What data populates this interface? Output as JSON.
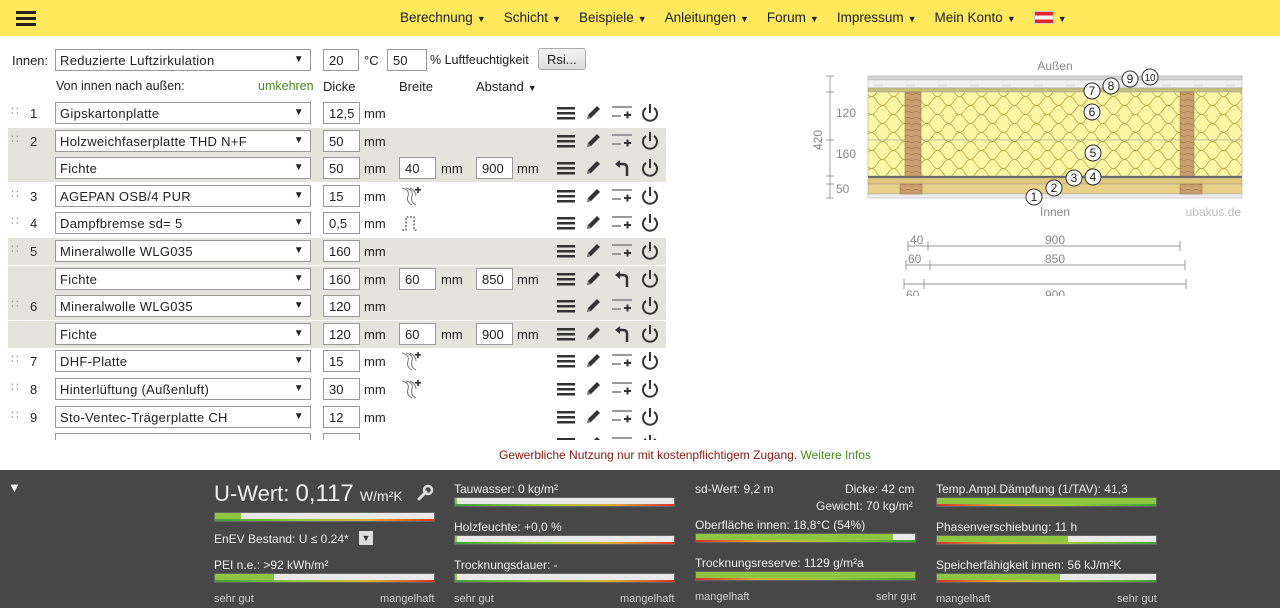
{
  "nav": {
    "items": [
      "Berechnung",
      "Schicht",
      "Beispiele",
      "Anleitungen",
      "Forum",
      "Impressum",
      "Mein Konto"
    ]
  },
  "controls": {
    "innen_label": "Innen:",
    "room_select": "Reduzierte Luftzirkulation",
    "temp": "20",
    "temp_unit": "°C",
    "humidity": "50",
    "humidity_unit": "% Luftfeuchtigkeit",
    "rsi_button": "Rsi...",
    "direction_label": "Von innen nach außen:",
    "reverse_link": "umkehren",
    "col_dicke": "Dicke",
    "col_breite": "Breite",
    "col_abstand": "Abstand"
  },
  "unit_mm": "mm",
  "layers": [
    {
      "num": "1",
      "material": "Gipskartonplatte",
      "dicke": "12,5"
    },
    {
      "num": "2",
      "material": "Holzweichfaserplatte THD N+F",
      "dicke": "50",
      "sub": {
        "material": "Fichte",
        "dicke": "50",
        "breite": "40",
        "abstand": "900"
      }
    },
    {
      "num": "3",
      "material": "AGEPAN OSB/4 PUR",
      "dicke": "15"
    },
    {
      "num": "4",
      "material": "Dampfbremse sd= 5",
      "dicke": "0,5"
    },
    {
      "num": "5",
      "material": "Mineralwolle WLG035",
      "dicke": "160",
      "sub": {
        "material": "Fichte",
        "dicke": "160",
        "breite": "60",
        "abstand": "850"
      }
    },
    {
      "num": "6",
      "material": "Mineralwolle WLG035",
      "dicke": "120",
      "sub": {
        "material": "Fichte",
        "dicke": "120",
        "breite": "60",
        "abstand": "900"
      }
    },
    {
      "num": "7",
      "material": "DHF-Platte",
      "dicke": "15"
    },
    {
      "num": "8",
      "material": "Hinterlüftung (Außenluft)",
      "dicke": "30"
    },
    {
      "num": "9",
      "material": "Sto-Ventec-Trägerplatte CH",
      "dicke": "12"
    }
  ],
  "diagram": {
    "outside": "Außen",
    "inside": "Innen",
    "brand": "ubakus.de",
    "total": "420",
    "dims": [
      "120",
      "160",
      "50"
    ],
    "bottom_dims": [
      {
        "left": "40",
        "center": "900"
      },
      {
        "left": "60",
        "center": "850"
      },
      {
        "left": "60",
        "center": "900"
      }
    ],
    "markers": [
      "1",
      "2",
      "3",
      "4",
      "5",
      "6",
      "7",
      "8",
      "9",
      "10"
    ]
  },
  "notice": {
    "text": "Gewerbliche Nutzung nur mit kostenpflichtigem Zugang.",
    "link": "Weitere Infos"
  },
  "results": {
    "uwert_label": "U-Wert:",
    "uwert_value": "0,117",
    "uwert_unit": "W/m²K",
    "uwert_level": 0.12,
    "enev": "EnEV Bestand: U ≤ 0.24*",
    "pei": "PEI n.e.: >92 kWh/m²",
    "pei_level": 0.27,
    "scale_good": "sehr gut",
    "scale_bad": "mangelhaft",
    "tauwasser": "Tauwasser: 0 kg/m²",
    "holzfeuchte": "Holzfeuchte: +0,0 %",
    "trocknungsdauer": "Trocknungsdauer: -",
    "sdwert": "sd-Wert: 9,2 m",
    "dicke": "Dicke: 42 cm",
    "gewicht": "Gewicht: 70 kg/m²",
    "oberflaeche": "Oberfläche innen: 18,8°C (54%)",
    "oberflaeche_level": 0.9,
    "trocknungsreserve": "Trocknungsreserve: 1129 g/m²a",
    "trocknungsreserve_level": 1.0,
    "temp_ampl": "Temp.Ampl.Dämpfung (1/TAV): 41,3",
    "temp_ampl_level": 1.0,
    "phasen": "Phasenverschiebung: 11 h",
    "phasen_level": 0.6,
    "speicher": "Speicherfähigkeit innen: 56 kJ/m²K",
    "speicher_level": 0.56,
    "scale_left_rev": "mangelhaft",
    "scale_right_rev": "sehr gut"
  },
  "colors": {
    "topbar": "#ffe85c",
    "panel": "#474747",
    "accent_green": "#4a8a1e",
    "notice_red": "#8a1a10"
  }
}
